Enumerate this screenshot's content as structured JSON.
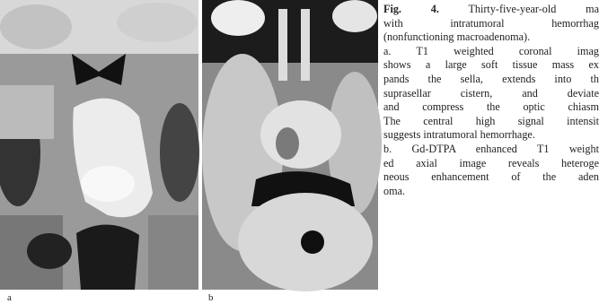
{
  "figure": {
    "panels": [
      {
        "label": "a"
      },
      {
        "label": "b"
      }
    ],
    "caption": {
      "fig_label": "Fig. 4.",
      "lines": [
        "Thirty-five-year-old ma",
        "with intratumoral hemorrhag",
        "(nonfunctioning macroadenoma).",
        "a. T1 weighted coronal imag",
        "shows a large soft tissue mass ex",
        "pands the sella, extends into th",
        "suprasellar cistern, and deviate",
        "and compress the optic chiasm",
        "The central high signal intensit",
        "suggests intratumoral hemorrhage.",
        "b. Gd-DTPA enhanced T1 weight",
        "ed axial image reveals heteroge",
        "neous enhancement of the aden",
        "oma."
      ]
    }
  }
}
